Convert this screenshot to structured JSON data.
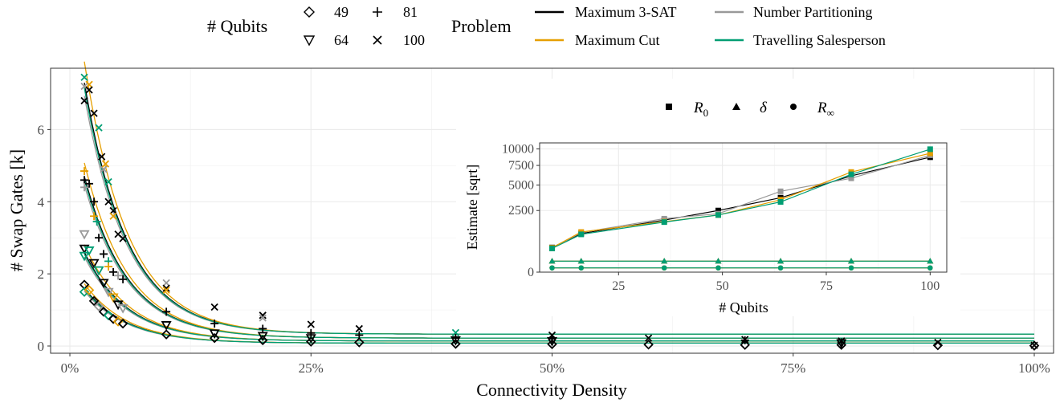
{
  "legend": {
    "qubits_title": "# Qubits",
    "qubits": [
      {
        "label": "49",
        "marker": "diamond"
      },
      {
        "label": "81",
        "marker": "plus"
      },
      {
        "label": "64",
        "marker": "triangle-down"
      },
      {
        "label": "100",
        "marker": "cross"
      }
    ],
    "problem_title": "Problem",
    "problems": [
      {
        "label": "Maximum 3-SAT",
        "color": "#000000"
      },
      {
        "label": "Number Partitioning",
        "color": "#999999"
      },
      {
        "label": "Maximum Cut",
        "color": "#E69F00"
      },
      {
        "label": "Travelling Salesperson",
        "color": "#009E73"
      }
    ]
  },
  "chart_data": [
    {
      "type": "scatter",
      "xlabel": "Connectivity Density",
      "ylabel": "# Swap Gates [k]",
      "xlim": [
        -0.02,
        1.02
      ],
      "ylim": [
        -0.2,
        7.7
      ],
      "x_ticks": [
        0,
        0.25,
        0.5,
        0.75,
        1.0
      ],
      "x_tick_labels": [
        "0%",
        "25%",
        "50%",
        "75%",
        "100%"
      ],
      "y_ticks": [
        0,
        2,
        4,
        6
      ],
      "y_tick_labels": [
        "0",
        "2",
        "4",
        "6"
      ],
      "grid": true,
      "fit_curves": [
        {
          "qubits": "100",
          "R0": 7.3,
          "R_inf": 0.33
        },
        {
          "qubits": "81",
          "R0": 4.7,
          "R_inf": 0.22
        },
        {
          "qubits": "64",
          "R0": 2.6,
          "R_inf": 0.14
        },
        {
          "qubits": "49",
          "R0": 1.6,
          "R_inf": 0.08
        }
      ],
      "points": [
        {
          "qubits": "100",
          "x": 0.015,
          "y": 7.45,
          "problem": "Travelling Salesperson"
        },
        {
          "qubits": "100",
          "x": 0.015,
          "y": 6.8,
          "problem": "Maximum 3-SAT"
        },
        {
          "qubits": "100",
          "x": 0.015,
          "y": 7.2,
          "problem": "Number Partitioning"
        },
        {
          "qubits": "100",
          "x": 0.02,
          "y": 7.25,
          "problem": "Maximum Cut"
        },
        {
          "qubits": "100",
          "x": 0.02,
          "y": 7.1,
          "problem": "Maximum 3-SAT"
        },
        {
          "qubits": "100",
          "x": 0.025,
          "y": 6.45,
          "problem": "Maximum 3-SAT"
        },
        {
          "qubits": "100",
          "x": 0.03,
          "y": 6.05,
          "problem": "Travelling Salesperson"
        },
        {
          "qubits": "100",
          "x": 0.033,
          "y": 5.25,
          "problem": "Maximum 3-SAT"
        },
        {
          "qubits": "100",
          "x": 0.035,
          "y": 4.9,
          "problem": "Number Partitioning"
        },
        {
          "qubits": "100",
          "x": 0.037,
          "y": 5.05,
          "problem": "Maximum Cut"
        },
        {
          "qubits": "100",
          "x": 0.04,
          "y": 4.55,
          "problem": "Travelling Salesperson"
        },
        {
          "qubits": "100",
          "x": 0.04,
          "y": 4.0,
          "problem": "Maximum 3-SAT"
        },
        {
          "qubits": "100",
          "x": 0.045,
          "y": 3.75,
          "problem": "Maximum 3-SAT"
        },
        {
          "qubits": "100",
          "x": 0.045,
          "y": 3.6,
          "problem": "Maximum Cut"
        },
        {
          "qubits": "100",
          "x": 0.05,
          "y": 3.1,
          "problem": "Maximum 3-SAT"
        },
        {
          "qubits": "100",
          "x": 0.055,
          "y": 2.98,
          "problem": "Maximum 3-SAT"
        },
        {
          "qubits": "100",
          "x": 0.1,
          "y": 1.75,
          "problem": "Number Partitioning"
        },
        {
          "qubits": "100",
          "x": 0.1,
          "y": 1.6,
          "problem": "Maximum 3-SAT"
        },
        {
          "qubits": "100",
          "x": 0.1,
          "y": 1.55,
          "problem": "Maximum Cut"
        },
        {
          "qubits": "100",
          "x": 0.15,
          "y": 1.08,
          "problem": "Maximum 3-SAT"
        },
        {
          "qubits": "100",
          "x": 0.2,
          "y": 0.85,
          "problem": "Maximum 3-SAT"
        },
        {
          "qubits": "100",
          "x": 0.2,
          "y": 0.78,
          "problem": "Number Partitioning"
        },
        {
          "qubits": "100",
          "x": 0.25,
          "y": 0.6,
          "problem": "Maximum 3-SAT"
        },
        {
          "qubits": "100",
          "x": 0.3,
          "y": 0.48,
          "problem": "Maximum 3-SAT"
        },
        {
          "qubits": "100",
          "x": 0.4,
          "y": 0.37,
          "problem": "Travelling Salesperson"
        },
        {
          "qubits": "100",
          "x": 0.5,
          "y": 0.3,
          "problem": "Maximum 3-SAT"
        },
        {
          "qubits": "100",
          "x": 0.6,
          "y": 0.22,
          "problem": "Maximum 3-SAT"
        },
        {
          "qubits": "100",
          "x": 0.7,
          "y": 0.18,
          "problem": "Maximum 3-SAT"
        },
        {
          "qubits": "100",
          "x": 0.8,
          "y": 0.14,
          "problem": "Maximum 3-SAT"
        },
        {
          "qubits": "100",
          "x": 0.9,
          "y": 0.1,
          "problem": "Maximum 3-SAT"
        },
        {
          "qubits": "100",
          "x": 1.0,
          "y": 0.02,
          "problem": "Maximum 3-SAT"
        },
        {
          "qubits": "81",
          "x": 0.015,
          "y": 4.85,
          "problem": "Maximum Cut"
        },
        {
          "qubits": "81",
          "x": 0.015,
          "y": 4.6,
          "problem": "Maximum 3-SAT"
        },
        {
          "qubits": "81",
          "x": 0.015,
          "y": 4.4,
          "problem": "Number Partitioning"
        },
        {
          "qubits": "81",
          "x": 0.02,
          "y": 4.5,
          "problem": "Maximum 3-SAT"
        },
        {
          "qubits": "81",
          "x": 0.025,
          "y": 4.0,
          "problem": "Maximum 3-SAT"
        },
        {
          "qubits": "81",
          "x": 0.025,
          "y": 3.6,
          "problem": "Maximum Cut"
        },
        {
          "qubits": "81",
          "x": 0.028,
          "y": 3.45,
          "problem": "Travelling Salesperson"
        },
        {
          "qubits": "81",
          "x": 0.03,
          "y": 3.0,
          "problem": "Maximum 3-SAT"
        },
        {
          "qubits": "81",
          "x": 0.035,
          "y": 2.55,
          "problem": "Maximum 3-SAT"
        },
        {
          "qubits": "81",
          "x": 0.04,
          "y": 2.35,
          "problem": "Travelling Salesperson"
        },
        {
          "qubits": "81",
          "x": 0.04,
          "y": 2.2,
          "problem": "Maximum Cut"
        },
        {
          "qubits": "81",
          "x": 0.045,
          "y": 2.05,
          "problem": "Maximum 3-SAT"
        },
        {
          "qubits": "81",
          "x": 0.05,
          "y": 1.95,
          "problem": "Number Partitioning"
        },
        {
          "qubits": "81",
          "x": 0.055,
          "y": 1.85,
          "problem": "Maximum 3-SAT"
        },
        {
          "qubits": "81",
          "x": 0.1,
          "y": 0.95,
          "problem": "Maximum 3-SAT"
        },
        {
          "qubits": "81",
          "x": 0.15,
          "y": 0.62,
          "problem": "Maximum 3-SAT"
        },
        {
          "qubits": "81",
          "x": 0.2,
          "y": 0.48,
          "problem": "Maximum 3-SAT"
        },
        {
          "qubits": "81",
          "x": 0.25,
          "y": 0.36,
          "problem": "Maximum 3-SAT"
        },
        {
          "qubits": "81",
          "x": 0.3,
          "y": 0.3,
          "problem": "Maximum 3-SAT"
        },
        {
          "qubits": "81",
          "x": 0.4,
          "y": 0.22,
          "problem": "Maximum 3-SAT"
        },
        {
          "qubits": "81",
          "x": 0.5,
          "y": 0.2,
          "problem": "Maximum 3-SAT"
        },
        {
          "qubits": "81",
          "x": 0.7,
          "y": 0.16,
          "problem": "Maximum 3-SAT"
        },
        {
          "qubits": "81",
          "x": 0.8,
          "y": 0.1,
          "problem": "Maximum 3-SAT"
        },
        {
          "qubits": "64",
          "x": 0.015,
          "y": 3.1,
          "problem": "Number Partitioning"
        },
        {
          "qubits": "64",
          "x": 0.015,
          "y": 2.7,
          "problem": "Maximum 3-SAT"
        },
        {
          "qubits": "64",
          "x": 0.015,
          "y": 2.5,
          "problem": "Travelling Salesperson"
        },
        {
          "qubits": "64",
          "x": 0.02,
          "y": 2.65,
          "problem": "Travelling Salesperson"
        },
        {
          "qubits": "64",
          "x": 0.025,
          "y": 2.3,
          "problem": "Maximum 3-SAT"
        },
        {
          "qubits": "64",
          "x": 0.03,
          "y": 2.1,
          "problem": "Travelling Salesperson"
        },
        {
          "qubits": "64",
          "x": 0.035,
          "y": 1.75,
          "problem": "Maximum 3-SAT"
        },
        {
          "qubits": "64",
          "x": 0.04,
          "y": 1.5,
          "problem": "Number Partitioning"
        },
        {
          "qubits": "64",
          "x": 0.045,
          "y": 1.35,
          "problem": "Maximum Cut"
        },
        {
          "qubits": "64",
          "x": 0.05,
          "y": 1.15,
          "problem": "Maximum 3-SAT"
        },
        {
          "qubits": "64",
          "x": 0.055,
          "y": 1.05,
          "problem": "Number Partitioning"
        },
        {
          "qubits": "64",
          "x": 0.1,
          "y": 0.58,
          "problem": "Maximum 3-SAT"
        },
        {
          "qubits": "64",
          "x": 0.15,
          "y": 0.35,
          "problem": "Maximum 3-SAT"
        },
        {
          "qubits": "64",
          "x": 0.2,
          "y": 0.28,
          "problem": "Maximum 3-SAT"
        },
        {
          "qubits": "64",
          "x": 0.25,
          "y": 0.22,
          "problem": "Maximum 3-SAT"
        },
        {
          "qubits": "64",
          "x": 0.4,
          "y": 0.16,
          "problem": "Maximum 3-SAT"
        },
        {
          "qubits": "64",
          "x": 0.5,
          "y": 0.14,
          "problem": "Maximum 3-SAT"
        },
        {
          "qubits": "64",
          "x": 0.8,
          "y": 0.08,
          "problem": "Maximum 3-SAT"
        },
        {
          "qubits": "49",
          "x": 0.015,
          "y": 1.7,
          "problem": "Maximum 3-SAT"
        },
        {
          "qubits": "49",
          "x": 0.015,
          "y": 1.5,
          "problem": "Travelling Salesperson"
        },
        {
          "qubits": "49",
          "x": 0.02,
          "y": 1.55,
          "problem": "Maximum Cut"
        },
        {
          "qubits": "49",
          "x": 0.025,
          "y": 1.25,
          "problem": "Maximum 3-SAT"
        },
        {
          "qubits": "49",
          "x": 0.03,
          "y": 1.1,
          "problem": "Number Partitioning"
        },
        {
          "qubits": "49",
          "x": 0.035,
          "y": 0.95,
          "problem": "Maximum 3-SAT"
        },
        {
          "qubits": "49",
          "x": 0.04,
          "y": 0.85,
          "problem": "Travelling Salesperson"
        },
        {
          "qubits": "49",
          "x": 0.045,
          "y": 0.75,
          "problem": "Maximum 3-SAT"
        },
        {
          "qubits": "49",
          "x": 0.05,
          "y": 0.68,
          "problem": "Maximum Cut"
        },
        {
          "qubits": "49",
          "x": 0.055,
          "y": 0.62,
          "problem": "Maximum 3-SAT"
        },
        {
          "qubits": "49",
          "x": 0.1,
          "y": 0.32,
          "problem": "Maximum 3-SAT"
        },
        {
          "qubits": "49",
          "x": 0.15,
          "y": 0.22,
          "problem": "Maximum 3-SAT"
        },
        {
          "qubits": "49",
          "x": 0.2,
          "y": 0.16,
          "problem": "Maximum 3-SAT"
        },
        {
          "qubits": "49",
          "x": 0.25,
          "y": 0.12,
          "problem": "Maximum 3-SAT"
        },
        {
          "qubits": "49",
          "x": 0.3,
          "y": 0.1,
          "problem": "Maximum 3-SAT"
        },
        {
          "qubits": "49",
          "x": 0.4,
          "y": 0.06,
          "problem": "Maximum 3-SAT"
        },
        {
          "qubits": "49",
          "x": 0.5,
          "y": 0.05,
          "problem": "Maximum 3-SAT"
        },
        {
          "qubits": "49",
          "x": 0.6,
          "y": 0.04,
          "problem": "Maximum 3-SAT"
        },
        {
          "qubits": "49",
          "x": 0.7,
          "y": 0.03,
          "problem": "Maximum 3-SAT"
        },
        {
          "qubits": "49",
          "x": 0.8,
          "y": 0.03,
          "problem": "Maximum 3-SAT"
        },
        {
          "qubits": "49",
          "x": 0.9,
          "y": 0.02,
          "problem": "Maximum 3-SAT"
        },
        {
          "qubits": "49",
          "x": 1.0,
          "y": 0.01,
          "problem": "Maximum 3-SAT"
        }
      ]
    },
    {
      "type": "line",
      "xlabel": "# Qubits",
      "ylabel": "Estimate [sqrt]",
      "y_scale": "sqrt",
      "xlim": [
        6,
        104
      ],
      "ylim": [
        0,
        11000
      ],
      "x_ticks": [
        25,
        50,
        75,
        100
      ],
      "x_tick_labels": [
        "25",
        "50",
        "75",
        "100"
      ],
      "y_ticks": [
        0,
        2500,
        5000,
        7500,
        10000
      ],
      "y_tick_labels": [
        "0",
        "2500",
        "5000",
        "7500",
        "10000"
      ],
      "grid": true,
      "legend": [
        {
          "label": "R",
          "sub": "0",
          "marker": "square"
        },
        {
          "label": "δ",
          "sub": "",
          "marker": "triangle"
        },
        {
          "label": "R",
          "sub": "∞",
          "marker": "circle"
        }
      ],
      "x": [
        9,
        16,
        36,
        49,
        64,
        81,
        100
      ],
      "series": [
        {
          "problem": "Maximum 3-SAT",
          "R0": [
            400,
            980,
            1780,
            2500,
            3650,
            6100,
            8700
          ],
          "delta": [
            80,
            80,
            80,
            80,
            80,
            80,
            80
          ],
          "R_inf": [
            12,
            12,
            12,
            12,
            12,
            12,
            12
          ]
        },
        {
          "problem": "Number Partitioning",
          "R0": [
            380,
            1030,
            1880,
            2250,
            4300,
            5800,
            9000
          ],
          "delta": [
            80,
            80,
            80,
            80,
            80,
            80,
            80
          ],
          "R_inf": [
            12,
            12,
            12,
            12,
            12,
            12,
            12
          ]
        },
        {
          "problem": "Maximum Cut",
          "R0": [
            390,
            1060,
            1680,
            2150,
            3450,
            6600,
            9300
          ],
          "delta": [
            80,
            80,
            80,
            80,
            80,
            80,
            80
          ],
          "R_inf": [
            12,
            12,
            12,
            12,
            12,
            12,
            12
          ]
        },
        {
          "problem": "Travelling Salesperson",
          "R0": [
            370,
            940,
            1650,
            2150,
            3250,
            6300,
            9950
          ],
          "delta": [
            80,
            80,
            80,
            80,
            80,
            80,
            80
          ],
          "R_inf": [
            12,
            12,
            12,
            12,
            12,
            12,
            12
          ]
        }
      ]
    }
  ]
}
